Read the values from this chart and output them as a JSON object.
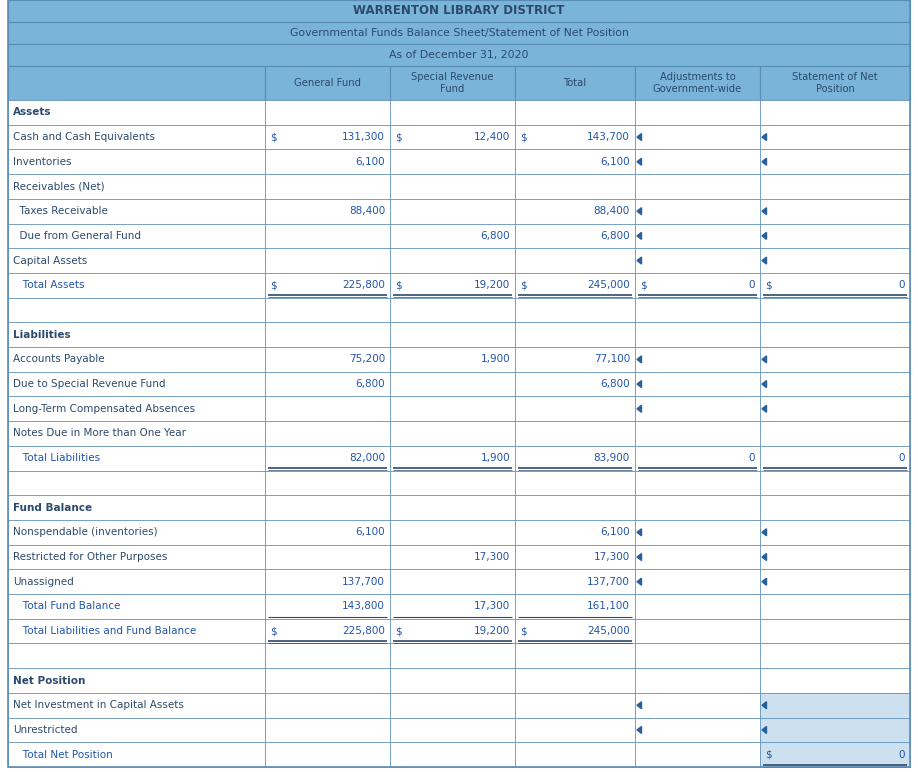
{
  "title1": "WARRENTON LIBRARY DISTRICT",
  "title2": "Governmental Funds Balance Sheet/Statement of Net Position",
  "title3": "As of December 31, 2020",
  "col_headers": [
    "General Fund",
    "Special Revenue\nFund",
    "Total",
    "Adjustments to\nGovernment-wide",
    "Statement of Net\nPosition"
  ],
  "rows": [
    {
      "label": "Assets",
      "indent": 0,
      "bold": true,
      "gf": "",
      "srf": "",
      "tot": "",
      "adj": "",
      "snp": "",
      "type": "section"
    },
    {
      "label": "Cash and Cash Equivalents",
      "indent": 0,
      "bold": false,
      "gf": "131,300",
      "srf": "12,400",
      "tot": "143,700",
      "adj": "",
      "snp": "",
      "type": "data",
      "ds_gf": true,
      "ds_srf": true,
      "ds_tot": true,
      "has_arrow": true
    },
    {
      "label": "Inventories",
      "indent": 0,
      "bold": false,
      "gf": "6,100",
      "srf": "",
      "tot": "6,100",
      "adj": "",
      "snp": "",
      "type": "data",
      "has_arrow": true
    },
    {
      "label": "Receivables (Net)",
      "indent": 0,
      "bold": false,
      "gf": "",
      "srf": "",
      "tot": "",
      "adj": "",
      "snp": "",
      "type": "data",
      "has_arrow": false
    },
    {
      "label": "  Taxes Receivable",
      "indent": 0,
      "bold": false,
      "gf": "88,400",
      "srf": "",
      "tot": "88,400",
      "adj": "",
      "snp": "",
      "type": "data",
      "has_arrow": true
    },
    {
      "label": "  Due from General Fund",
      "indent": 0,
      "bold": false,
      "gf": "",
      "srf": "6,800",
      "tot": "6,800",
      "adj": "",
      "snp": "",
      "type": "data",
      "has_arrow": true
    },
    {
      "label": "Capital Assets",
      "indent": 0,
      "bold": false,
      "gf": "",
      "srf": "",
      "tot": "",
      "adj": "",
      "snp": "",
      "type": "data",
      "has_arrow": true
    },
    {
      "label": "   Total Assets",
      "indent": 0,
      "bold": false,
      "gf": "225,800",
      "srf": "19,200",
      "tot": "245,000",
      "adj": "0",
      "snp": "0",
      "type": "total",
      "ds_gf": true,
      "ds_srf": true,
      "ds_tot": true,
      "ds_adj": true,
      "ds_snp": true,
      "has_arrow": false
    },
    {
      "label": "",
      "indent": 0,
      "bold": false,
      "gf": "",
      "srf": "",
      "tot": "",
      "adj": "",
      "snp": "",
      "type": "blank",
      "has_arrow": false
    },
    {
      "label": "Liabilities",
      "indent": 0,
      "bold": true,
      "gf": "",
      "srf": "",
      "tot": "",
      "adj": "",
      "snp": "",
      "type": "section",
      "has_arrow": false
    },
    {
      "label": "Accounts Payable",
      "indent": 0,
      "bold": false,
      "gf": "75,200",
      "srf": "1,900",
      "tot": "77,100",
      "adj": "",
      "snp": "",
      "type": "data",
      "has_arrow": true
    },
    {
      "label": "Due to Special Revenue Fund",
      "indent": 0,
      "bold": false,
      "gf": "6,800",
      "srf": "",
      "tot": "6,800",
      "adj": "",
      "snp": "",
      "type": "data",
      "has_arrow": true
    },
    {
      "label": "Long-Term Compensated Absences",
      "indent": 0,
      "bold": false,
      "gf": "",
      "srf": "",
      "tot": "",
      "adj": "",
      "snp": "",
      "type": "data",
      "has_arrow": true
    },
    {
      "label": "Notes Due in More than One Year",
      "indent": 0,
      "bold": false,
      "gf": "",
      "srf": "",
      "tot": "",
      "adj": "",
      "snp": "",
      "type": "data",
      "has_arrow": false
    },
    {
      "label": "   Total Liabilities",
      "indent": 0,
      "bold": false,
      "gf": "82,000",
      "srf": "1,900",
      "tot": "83,900",
      "adj": "0",
      "snp": "0",
      "type": "total",
      "has_arrow": false
    },
    {
      "label": "",
      "indent": 0,
      "bold": false,
      "gf": "",
      "srf": "",
      "tot": "",
      "adj": "",
      "snp": "",
      "type": "blank",
      "has_arrow": false
    },
    {
      "label": "Fund Balance",
      "indent": 0,
      "bold": true,
      "gf": "",
      "srf": "",
      "tot": "",
      "adj": "",
      "snp": "",
      "type": "section",
      "has_arrow": false
    },
    {
      "label": "Nonspendable (inventories)",
      "indent": 0,
      "bold": false,
      "gf": "6,100",
      "srf": "",
      "tot": "6,100",
      "adj": "",
      "snp": "",
      "type": "data",
      "has_arrow": true
    },
    {
      "label": "Restricted for Other Purposes",
      "indent": 0,
      "bold": false,
      "gf": "",
      "srf": "17,300",
      "tot": "17,300",
      "adj": "",
      "snp": "",
      "type": "data",
      "has_arrow": true
    },
    {
      "label": "Unassigned",
      "indent": 0,
      "bold": false,
      "gf": "137,700",
      "srf": "",
      "tot": "137,700",
      "adj": "",
      "snp": "",
      "type": "data",
      "has_arrow": true
    },
    {
      "label": "   Total Fund Balance",
      "indent": 0,
      "bold": false,
      "gf": "143,800",
      "srf": "17,300",
      "tot": "161,100",
      "adj": "",
      "snp": "",
      "type": "subtotal",
      "has_arrow": false
    },
    {
      "label": "   Total Liabilities and Fund Balance",
      "indent": 0,
      "bold": false,
      "gf": "225,800",
      "srf": "19,200",
      "tot": "245,000",
      "adj": "",
      "snp": "",
      "type": "total2",
      "ds_gf": true,
      "ds_srf": true,
      "ds_tot": true,
      "has_arrow": false
    },
    {
      "label": "",
      "indent": 0,
      "bold": false,
      "gf": "",
      "srf": "",
      "tot": "",
      "adj": "",
      "snp": "",
      "type": "blank",
      "has_arrow": false
    },
    {
      "label": "Net Position",
      "indent": 0,
      "bold": true,
      "gf": "",
      "srf": "",
      "tot": "",
      "adj": "",
      "snp": "",
      "type": "section",
      "has_arrow": false
    },
    {
      "label": "Net Investment in Capital Assets",
      "indent": 0,
      "bold": false,
      "gf": "",
      "srf": "",
      "tot": "",
      "adj": "",
      "snp": "",
      "type": "data_snp",
      "has_arrow": true
    },
    {
      "label": "Unrestricted",
      "indent": 0,
      "bold": false,
      "gf": "",
      "srf": "",
      "tot": "",
      "adj": "",
      "snp": "",
      "type": "data_snp",
      "has_arrow": true
    },
    {
      "label": "   Total Net Position",
      "indent": 0,
      "bold": false,
      "gf": "",
      "srf": "",
      "tot": "",
      "adj": "",
      "snp": "0",
      "type": "total_snp",
      "ds_snp": true,
      "has_arrow": false
    }
  ],
  "header_color": "#7ab4d8",
  "border_color": "#5a8db5",
  "text_color_dark": "#2c4a6e",
  "text_color_blue": "#2255aa",
  "snp_bg": "#cce0f0"
}
